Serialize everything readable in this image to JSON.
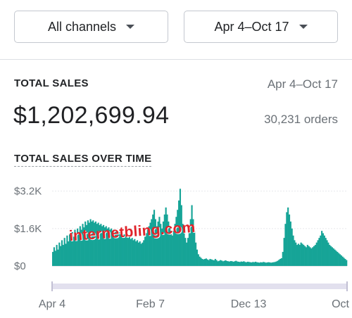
{
  "filters": {
    "channel": {
      "label": "All channels",
      "icon": "caret-down-icon"
    },
    "range": {
      "label": "Apr 4–Oct 17",
      "icon": "caret-down-icon"
    }
  },
  "metric": {
    "title": "TOTAL SALES",
    "range": "Apr 4–Oct 17",
    "value": "$1,202,699.94",
    "orders": "30,231 orders"
  },
  "chart_title": "TOTAL SALES OVER TIME",
  "watermark": "internetbling.com",
  "colors": {
    "accent": "#16a497",
    "scrollbar": "#e2e0ee",
    "text_muted": "#6b7177"
  },
  "chart_data": {
    "type": "bar",
    "title": "TOTAL SALES OVER TIME",
    "y_tick_labels": [
      "$3.2K",
      "$1.6K",
      "$0"
    ],
    "y_ticks": [
      3200,
      1600,
      0
    ],
    "ylim": [
      0,
      3400
    ],
    "x_tick_labels": [
      "Apr 4",
      "Feb 7",
      "Dec 13",
      "Oct"
    ],
    "x_tick_positions": [
      0,
      0.333,
      0.666,
      1.0
    ],
    "series": [
      {
        "values": [
          600,
          800,
          650,
          900,
          700,
          1000,
          850,
          1100,
          900,
          1200,
          950,
          1300,
          1050,
          1350,
          1150,
          1450,
          1250,
          1550,
          1350,
          1600,
          1450,
          1700,
          1550,
          1800,
          1650,
          1900,
          1750,
          1950,
          1850,
          2000,
          1900,
          1950,
          1850,
          1900,
          1800,
          1850,
          1750,
          1800,
          1700,
          1750,
          1650,
          1700,
          1600,
          1650,
          1550,
          1600,
          1500,
          1550,
          1450,
          1500,
          1400,
          1450,
          1350,
          1400,
          1300,
          1350,
          1250,
          1300,
          1200,
          1250,
          1150,
          1200,
          1100,
          1150,
          1050,
          1100,
          1000,
          1050,
          950,
          1000,
          1100,
          1250,
          1400,
          1550,
          1700,
          1850,
          2000,
          2200,
          2400,
          2000,
          1700,
          1900,
          2100,
          1800,
          1600,
          1900,
          2200,
          2500,
          2200,
          1900,
          1700,
          1500,
          1300,
          1500,
          1800,
          2100,
          2400,
          2800,
          3300,
          2600,
          1800,
          1400,
          1200,
          1000,
          1200,
          1600,
          2000,
          2600,
          2000,
          1500,
          1000,
          700,
          500,
          400,
          350,
          300,
          280,
          300,
          320,
          280,
          250,
          300,
          280,
          260,
          240,
          300,
          250,
          200,
          220,
          250,
          230,
          200,
          220,
          240,
          210,
          200,
          190,
          210,
          200,
          180,
          200,
          220,
          190,
          180,
          170,
          190,
          180,
          200,
          170,
          160,
          180,
          170,
          160,
          150,
          170,
          160,
          180,
          160,
          150,
          140,
          160,
          150,
          170,
          160,
          140,
          150,
          160,
          150,
          140,
          150,
          160,
          170,
          190,
          220,
          260,
          300,
          330,
          600,
          1200,
          1800,
          2300,
          2500,
          2200,
          1900,
          1600,
          1300,
          1100,
          1000,
          900,
          950,
          900,
          1000,
          950,
          900,
          850,
          800,
          900,
          850,
          800,
          750,
          800,
          850,
          900,
          1000,
          1100,
          1200,
          1300,
          1500,
          1400,
          1300,
          1200,
          1100,
          1000,
          900,
          850,
          800,
          750,
          700,
          650,
          600,
          550,
          500,
          450,
          400,
          350,
          300,
          250
        ]
      }
    ]
  }
}
